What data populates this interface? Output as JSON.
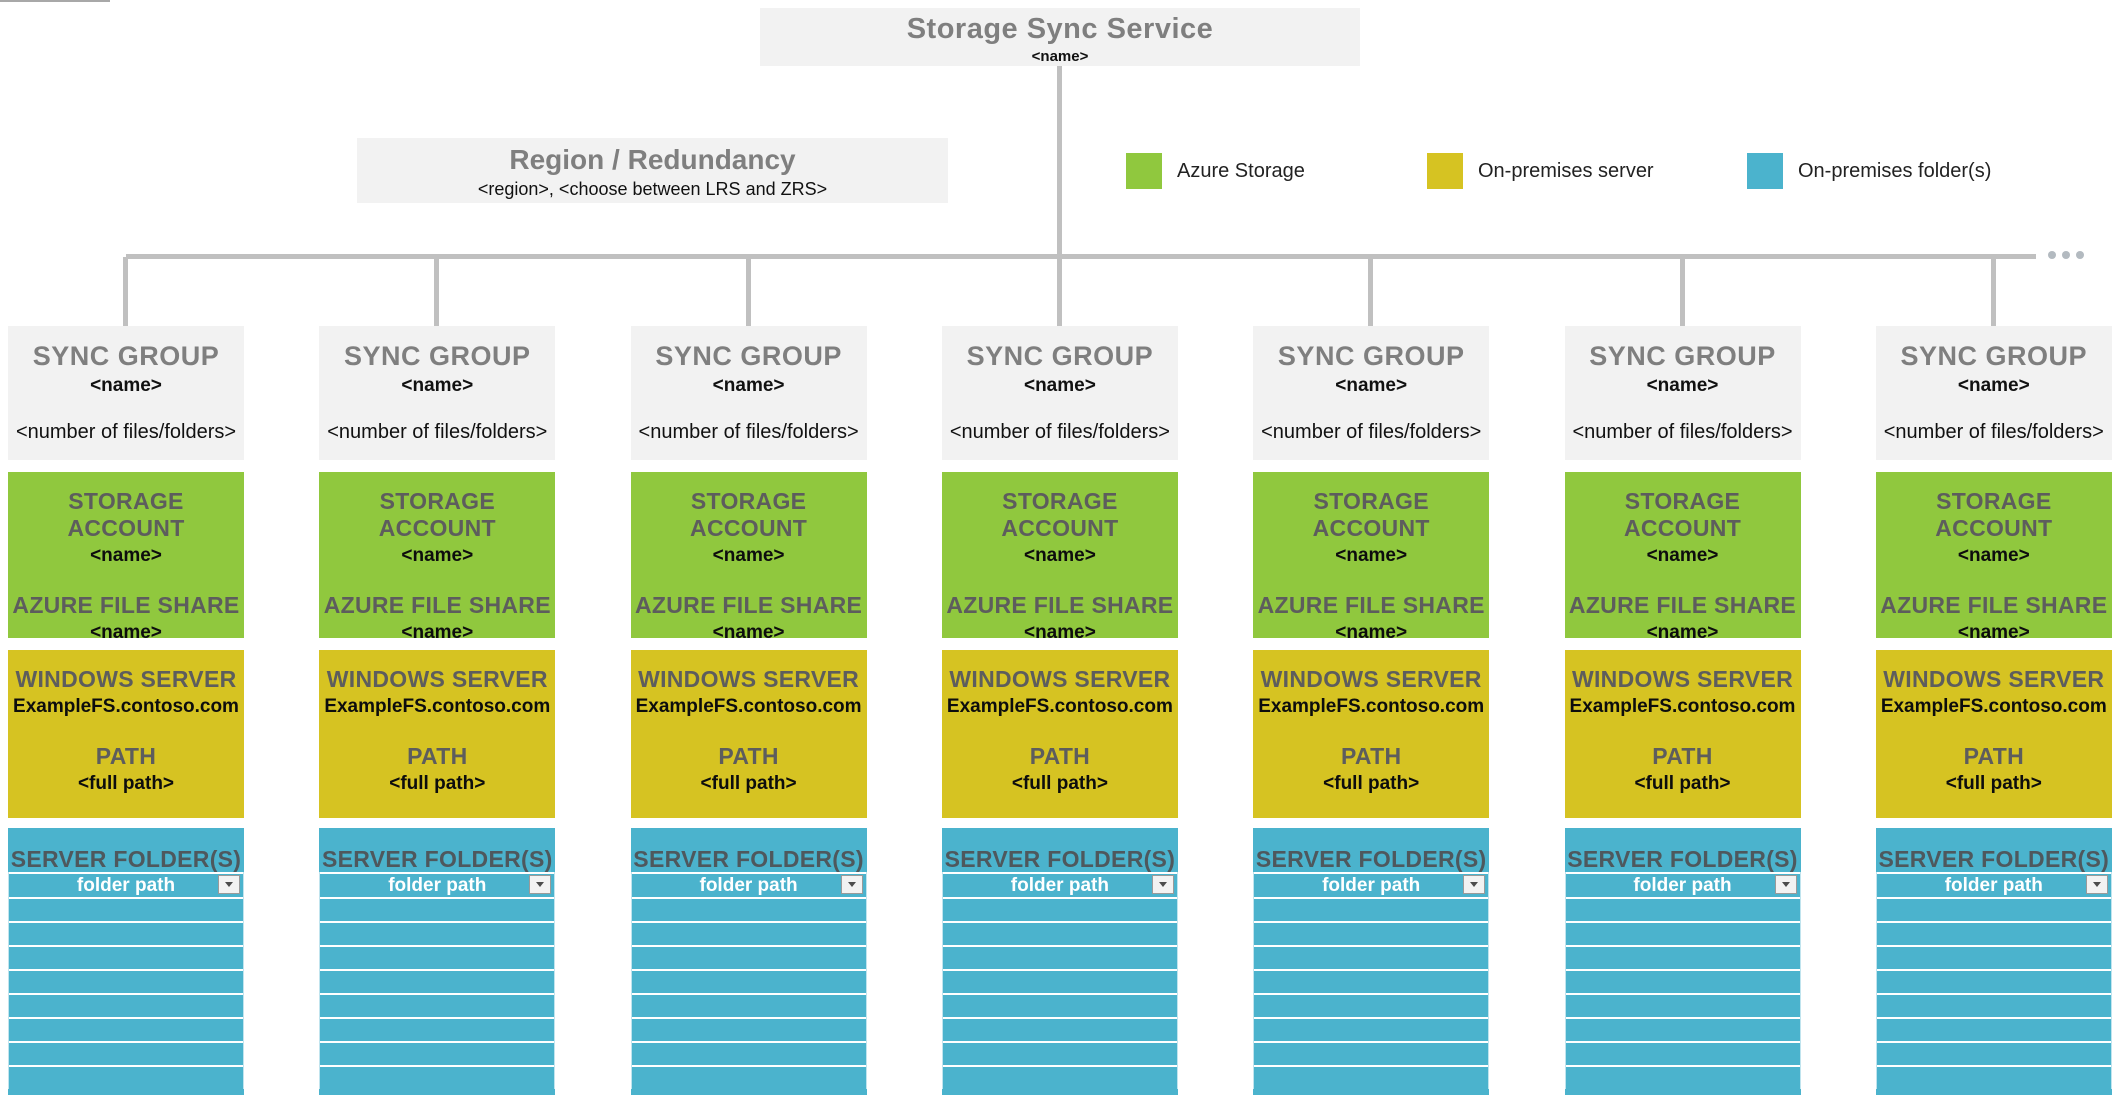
{
  "service": {
    "title": "Storage Sync Service",
    "name": "<name>"
  },
  "region": {
    "title": "Region / Redundancy",
    "subtitle": "<region>, <choose between LRS and ZRS>"
  },
  "colors": {
    "azure_storage": "#90c83e",
    "on_prem_server": "#d6c322",
    "on_prem_folder": "#4bb3cd"
  },
  "legend": [
    {
      "label": "Azure Storage"
    },
    {
      "label": "On-premises server"
    },
    {
      "label": "On-premises folder(s)"
    }
  ],
  "sync_groups": [
    {
      "group_label": "SYNC GROUP",
      "group_name": "<name>",
      "files_count": "<number of files/folders>",
      "storage_account_label": "STORAGE ACCOUNT",
      "storage_account_name": "<name>",
      "file_share_label": "AZURE FILE SHARE",
      "file_share_name": "<name>",
      "windows_server_label": "WINDOWS SERVER",
      "windows_server_name": "ExampleFS.contoso.com",
      "path_label": "PATH",
      "path_value": "<full path>",
      "server_folders_label": "SERVER FOLDER(S)",
      "folder_path": "folder path"
    },
    {
      "group_label": "SYNC GROUP",
      "group_name": "<name>",
      "files_count": "<number of files/folders>",
      "storage_account_label": "STORAGE ACCOUNT",
      "storage_account_name": "<name>",
      "file_share_label": "AZURE FILE SHARE",
      "file_share_name": "<name>",
      "windows_server_label": "WINDOWS SERVER",
      "windows_server_name": "ExampleFS.contoso.com",
      "path_label": "PATH",
      "path_value": "<full path>",
      "server_folders_label": "SERVER FOLDER(S)",
      "folder_path": "folder path"
    },
    {
      "group_label": "SYNC GROUP",
      "group_name": "<name>",
      "files_count": "<number of files/folders>",
      "storage_account_label": "STORAGE ACCOUNT",
      "storage_account_name": "<name>",
      "file_share_label": "AZURE FILE SHARE",
      "file_share_name": "<name>",
      "windows_server_label": "WINDOWS SERVER",
      "windows_server_name": "ExampleFS.contoso.com",
      "path_label": "PATH",
      "path_value": "<full path>",
      "server_folders_label": "SERVER FOLDER(S)",
      "folder_path": "folder path"
    },
    {
      "group_label": "SYNC GROUP",
      "group_name": "<name>",
      "files_count": "<number of files/folders>",
      "storage_account_label": "STORAGE ACCOUNT",
      "storage_account_name": "<name>",
      "file_share_label": "AZURE FILE SHARE",
      "file_share_name": "<name>",
      "windows_server_label": "WINDOWS SERVER",
      "windows_server_name": "ExampleFS.contoso.com",
      "path_label": "PATH",
      "path_value": "<full path>",
      "server_folders_label": "SERVER FOLDER(S)",
      "folder_path": "folder path"
    },
    {
      "group_label": "SYNC GROUP",
      "group_name": "<name>",
      "files_count": "<number of files/folders>",
      "storage_account_label": "STORAGE ACCOUNT",
      "storage_account_name": "<name>",
      "file_share_label": "AZURE FILE SHARE",
      "file_share_name": "<name>",
      "windows_server_label": "WINDOWS SERVER",
      "windows_server_name": "ExampleFS.contoso.com",
      "path_label": "PATH",
      "path_value": "<full path>",
      "server_folders_label": "SERVER FOLDER(S)",
      "folder_path": "folder path"
    },
    {
      "group_label": "SYNC GROUP",
      "group_name": "<name>",
      "files_count": "<number of files/folders>",
      "storage_account_label": "STORAGE ACCOUNT",
      "storage_account_name": "<name>",
      "file_share_label": "AZURE FILE SHARE",
      "file_share_name": "<name>",
      "windows_server_label": "WINDOWS SERVER",
      "windows_server_name": "ExampleFS.contoso.com",
      "path_label": "PATH",
      "path_value": "<full path>",
      "server_folders_label": "SERVER FOLDER(S)",
      "folder_path": "folder path"
    },
    {
      "group_label": "SYNC GROUP",
      "group_name": "<name>",
      "files_count": "<number of files/folders>",
      "storage_account_label": "STORAGE ACCOUNT",
      "storage_account_name": "<name>",
      "file_share_label": "AZURE FILE SHARE",
      "file_share_name": "<name>",
      "windows_server_label": "WINDOWS SERVER",
      "windows_server_name": "ExampleFS.contoso.com",
      "path_label": "PATH",
      "path_value": "<full path>",
      "server_folders_label": "SERVER FOLDER(S)",
      "folder_path": "folder path"
    }
  ]
}
